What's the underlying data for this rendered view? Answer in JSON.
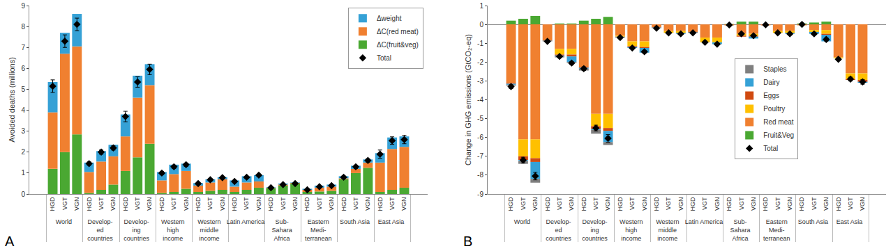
{
  "chart_data": [
    {
      "type": "bar",
      "stacked": true,
      "panel_label": "A",
      "y_label": "Avoided deaths (millions)",
      "groups": [
        "World",
        "Develop-\ned\ncountries",
        "Develop-\ning\ncountries",
        "Western\nhigh\nincome",
        "Western\nmiddle\nincome",
        "Latin America",
        "Sub-\nSahara\nAfrica",
        "Eastern\nMedi-\nterranean",
        "South Asia",
        "East Asia"
      ],
      "categories": [
        "HGD",
        "VGT",
        "VGN"
      ],
      "ylim": [
        0,
        9
      ],
      "yticks": [
        0,
        1,
        2,
        3,
        4,
        5,
        6,
        7,
        8,
        9
      ],
      "grid": false,
      "legend": "top-right",
      "series": [
        {
          "name": "Δweight",
          "color": "#35a1d6",
          "values": [
            [
              1.45,
              1.0,
              1.55
            ],
            [
              0.45,
              0.5,
              0.55
            ],
            [
              1.05,
              1.05,
              1.0
            ],
            [
              0.4,
              0.45,
              0.35
            ],
            [
              0.12,
              0.15,
              0.1
            ],
            [
              0.3,
              0.3,
              0.3
            ],
            [
              0.02,
              0.05,
              0.02
            ],
            [
              0.05,
              0.1,
              0.1
            ],
            [
              0.1,
              0.15,
              0.15
            ],
            [
              0.45,
              0.55,
              0.5
            ]
          ]
        },
        {
          "name": "ΔC(red meat)",
          "color": "#f08030",
          "values": [
            [
              2.7,
              4.7,
              4.2
            ],
            [
              1.0,
              1.35,
              1.35
            ],
            [
              1.65,
              2.85,
              2.8
            ],
            [
              0.6,
              0.85,
              0.85
            ],
            [
              0.3,
              0.4,
              0.5
            ],
            [
              0.25,
              0.35,
              0.3
            ],
            [
              0.02,
              0.05,
              0.03
            ],
            [
              0.1,
              0.18,
              0.2
            ],
            [
              0.05,
              0.2,
              0.25
            ],
            [
              1.4,
              1.95,
              1.95
            ]
          ]
        },
        {
          "name": "ΔC(fruit&veg)",
          "color": "#4aa832",
          "values": [
            [
              1.2,
              2.0,
              2.85
            ],
            [
              0.05,
              0.2,
              0.45
            ],
            [
              1.1,
              1.75,
              2.4
            ],
            [
              0.05,
              0.1,
              0.25
            ],
            [
              0.1,
              0.15,
              0.2
            ],
            [
              0.1,
              0.2,
              0.3
            ],
            [
              0.28,
              0.4,
              0.5
            ],
            [
              0.1,
              0.12,
              0.15
            ],
            [
              0.7,
              1.0,
              1.25
            ],
            [
              0.1,
              0.2,
              0.3
            ]
          ]
        },
        {
          "name": "Total",
          "type": "scatter",
          "marker": "diamond",
          "color": "#000000",
          "values": [
            [
              5.15,
              7.3,
              8.1
            ],
            [
              1.45,
              2.0,
              2.2
            ],
            [
              3.7,
              5.35,
              5.95
            ],
            [
              1.0,
              1.3,
              1.4
            ],
            [
              0.5,
              0.68,
              0.78
            ],
            [
              0.6,
              0.8,
              0.9
            ],
            [
              0.3,
              0.45,
              0.5
            ],
            [
              0.2,
              0.35,
              0.4
            ],
            [
              0.8,
              1.3,
              1.6
            ],
            [
              1.9,
              2.55,
              2.6
            ]
          ],
          "errors": [
            [
              0.3,
              0.3,
              0.3
            ],
            [
              0.08,
              0.1,
              0.1
            ],
            [
              0.25,
              0.25,
              0.25
            ],
            [
              0.07,
              0.08,
              0.08
            ],
            [
              0.05,
              0.05,
              0.05
            ],
            [
              0.05,
              0.05,
              0.05
            ],
            [
              0.03,
              0.04,
              0.04
            ],
            [
              0.03,
              0.04,
              0.04
            ],
            [
              0.06,
              0.08,
              0.08
            ],
            [
              0.2,
              0.18,
              0.2
            ]
          ]
        }
      ]
    },
    {
      "type": "bar",
      "stacked": true,
      "panel_label": "B",
      "y_label": "Change in GHG emissions (GtCO₂-eq)",
      "groups": [
        "World",
        "Develop-\ned\ncountries",
        "Develop-\ning\ncountries",
        "Western\nhigh\nincome",
        "Western\nmiddle\nincome",
        "Latin America",
        "Sub-\nSahara\nAfrica",
        "Eastern\nMedi-\nterranean",
        "South Asia",
        "East Asia"
      ],
      "categories": [
        "HGD",
        "VGT",
        "VGN"
      ],
      "ylim": [
        -9,
        1
      ],
      "yticks": [
        -9,
        -8,
        -7,
        -6,
        -5,
        -4,
        -3,
        -2,
        -1,
        0,
        1
      ],
      "grid": false,
      "legend": "center",
      "series": [
        {
          "name": "Staples",
          "color": "#7f7f7f",
          "values": [
            [
              -0.05,
              -0.15,
              -0.2
            ],
            [
              -0.05,
              -0.05,
              -0.05
            ],
            [
              -0.1,
              -0.2,
              -0.15
            ],
            [
              -0.05,
              0,
              0
            ],
            [
              -0.05,
              0,
              0
            ],
            [
              -0.05,
              0,
              0
            ],
            [
              0,
              0,
              0
            ],
            [
              0,
              0,
              0
            ],
            [
              0,
              0,
              0
            ],
            [
              0,
              0,
              0
            ]
          ]
        },
        {
          "name": "Dairy",
          "color": "#35a1d6",
          "values": [
            [
              -0.05,
              -0.05,
              -0.9
            ],
            [
              0,
              -0.05,
              -0.3
            ],
            [
              -0.05,
              -0.05,
              -0.6
            ],
            [
              0,
              -0.05,
              -0.25
            ],
            [
              0,
              0,
              -0.05
            ],
            [
              0,
              0,
              -0.1
            ],
            [
              0,
              0,
              -0.1
            ],
            [
              0,
              0,
              -0.05
            ],
            [
              0,
              -0.1,
              -0.35
            ],
            [
              0,
              0,
              -0.05
            ]
          ]
        },
        {
          "name": "Eggs",
          "color": "#d04a10",
          "values": [
            [
              -0.05,
              -0.2,
              -0.2
            ],
            [
              0,
              -0.05,
              -0.1
            ],
            [
              -0.05,
              -0.15,
              -0.15
            ],
            [
              0,
              -0.05,
              -0.05
            ],
            [
              0,
              0,
              0
            ],
            [
              0,
              0,
              0
            ],
            [
              0,
              -0.05,
              -0.05
            ],
            [
              0,
              0,
              0
            ],
            [
              0,
              0,
              -0.05
            ],
            [
              0,
              -0.05,
              -0.1
            ]
          ]
        },
        {
          "name": "Poultry",
          "color": "#ffc000",
          "values": [
            [
              0,
              -0.9,
              -1.0
            ],
            [
              0,
              -0.3,
              -0.3
            ],
            [
              0,
              -0.65,
              -0.75
            ],
            [
              -0.05,
              -0.25,
              -0.3
            ],
            [
              0,
              -0.1,
              -0.1
            ],
            [
              0,
              -0.25,
              -0.25
            ],
            [
              0,
              -0.1,
              -0.1
            ],
            [
              0,
              -0.1,
              -0.1
            ],
            [
              0,
              -0.1,
              -0.2
            ],
            [
              -0.05,
              -0.3,
              -0.35
            ]
          ]
        },
        {
          "name": "Red meat",
          "color": "#f08030",
          "values": [
            [
              -3.1,
              -6.1,
              -6.1
            ],
            [
              -0.85,
              -1.3,
              -1.3
            ],
            [
              -2.25,
              -4.75,
              -4.75
            ],
            [
              -0.6,
              -0.9,
              -0.9
            ],
            [
              -0.15,
              -0.35,
              -0.35
            ],
            [
              -0.4,
              -0.7,
              -0.7
            ],
            [
              -0.05,
              -0.5,
              -0.5
            ],
            [
              -0.05,
              -0.35,
              -0.35
            ],
            [
              -0.05,
              -0.3,
              -0.3
            ],
            [
              -1.75,
              -2.6,
              -2.6
            ]
          ]
        },
        {
          "name": "Fruit&Veg",
          "color": "#4aa832",
          "values": [
            [
              0.2,
              0.3,
              0.45
            ],
            [
              0,
              0.05,
              0.05
            ],
            [
              0.2,
              0.3,
              0.4
            ],
            [
              0,
              0,
              0
            ],
            [
              0,
              0,
              0
            ],
            [
              0,
              0,
              0
            ],
            [
              0.02,
              0.15,
              0.15
            ],
            [
              0,
              0,
              0
            ],
            [
              0.05,
              0.1,
              0.15
            ],
            [
              0,
              0,
              0
            ]
          ]
        },
        {
          "name": "Total",
          "type": "scatter",
          "marker": "diamond",
          "color": "#000000",
          "values": [
            [
              -3.3,
              -7.2,
              -8.05
            ],
            [
              -0.9,
              -1.7,
              -2.05
            ],
            [
              -2.35,
              -5.5,
              -6.05
            ],
            [
              -0.7,
              -1.25,
              -1.45
            ],
            [
              -0.2,
              -0.45,
              -0.5
            ],
            [
              -0.45,
              -0.95,
              -1.05
            ],
            [
              -0.03,
              -0.5,
              -0.6
            ],
            [
              -0.02,
              -0.45,
              -0.5
            ],
            [
              0.0,
              -0.5,
              -0.8
            ],
            [
              -1.85,
              -2.9,
              -3.05
            ]
          ],
          "errors": [
            [
              0.1,
              0.15,
              0.2
            ],
            [
              0.05,
              0.05,
              0.08
            ],
            [
              0.1,
              0.15,
              0.2
            ],
            [
              0.03,
              0.05,
              0.06
            ],
            [
              0.02,
              0.03,
              0.03
            ],
            [
              0.03,
              0.04,
              0.05
            ],
            [
              0.02,
              0.05,
              0.05
            ],
            [
              0.02,
              0.03,
              0.03
            ],
            [
              0.02,
              0.05,
              0.08
            ],
            [
              0.08,
              0.1,
              0.12
            ]
          ]
        }
      ]
    }
  ]
}
